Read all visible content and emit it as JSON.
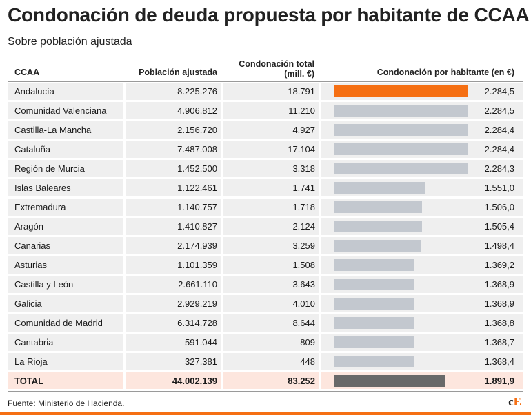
{
  "title": "Condonación de deuda propuesta por habitante de CCAA",
  "subtitle": "Sobre población ajustada",
  "headers": {
    "ccaa": "CCAA",
    "poblacion": "Población ajustada",
    "condonacion_total_1": "Condonación total",
    "condonacion_total_2": "(mill. €)",
    "por_habitante": "Condonación por habitante (en €)"
  },
  "chart_data": {
    "type": "table",
    "title": "Condonación de deuda propuesta por habitante de CCAA",
    "subtitle": "Sobre población ajustada",
    "columns": [
      "CCAA",
      "Población ajustada",
      "Condonación total (mill. €)",
      "Condonación por habitante (en €)"
    ],
    "bar_max": 2284.5,
    "colors": {
      "highlight": "#f56f13",
      "bar": "#c3c8cf",
      "total_bar": "#696969",
      "total_row": "#fde6de",
      "row": "#efefef"
    },
    "rows": [
      {
        "ccaa": "Andalucía",
        "poblacion": "8.225.276",
        "total": "18.791",
        "per_capita": "2.284,5",
        "value": 2284.5
      },
      {
        "ccaa": "Comunidad Valenciana",
        "poblacion": "4.906.812",
        "total": "11.210",
        "per_capita": "2.284,5",
        "value": 2284.5
      },
      {
        "ccaa": "Castilla-La Mancha",
        "poblacion": "2.156.720",
        "total": "4.927",
        "per_capita": "2.284,4",
        "value": 2284.4
      },
      {
        "ccaa": "Cataluña",
        "poblacion": "7.487.008",
        "total": "17.104",
        "per_capita": "2.284,4",
        "value": 2284.4
      },
      {
        "ccaa": "Región de Murcia",
        "poblacion": "1.452.500",
        "total": "3.318",
        "per_capita": "2.284,3",
        "value": 2284.3
      },
      {
        "ccaa": "Islas Baleares",
        "poblacion": "1.122.461",
        "total": "1.741",
        "per_capita": "1.551,0",
        "value": 1551.0
      },
      {
        "ccaa": "Extremadura",
        "poblacion": "1.140.757",
        "total": "1.718",
        "per_capita": "1.506,0",
        "value": 1506.0
      },
      {
        "ccaa": "Aragón",
        "poblacion": "1.410.827",
        "total": "2.124",
        "per_capita": "1.505,4",
        "value": 1505.4
      },
      {
        "ccaa": "Canarias",
        "poblacion": "2.174.939",
        "total": "3.259",
        "per_capita": "1.498,4",
        "value": 1498.4
      },
      {
        "ccaa": "Asturias",
        "poblacion": "1.101.359",
        "total": "1.508",
        "per_capita": "1.369,2",
        "value": 1369.2
      },
      {
        "ccaa": "Castilla y León",
        "poblacion": "2.661.110",
        "total": "3.643",
        "per_capita": "1.368,9",
        "value": 1368.9
      },
      {
        "ccaa": "Galicia",
        "poblacion": "2.929.219",
        "total": "4.010",
        "per_capita": "1.368,9",
        "value": 1368.9
      },
      {
        "ccaa": "Comunidad de Madrid",
        "poblacion": "6.314.728",
        "total": "8.644",
        "per_capita": "1.368,8",
        "value": 1368.8
      },
      {
        "ccaa": "Cantabria",
        "poblacion": "591.044",
        "total": "809",
        "per_capita": "1.368,7",
        "value": 1368.7
      },
      {
        "ccaa": "La Rioja",
        "poblacion": "327.381",
        "total": "448",
        "per_capita": "1.368,4",
        "value": 1368.4
      }
    ],
    "total": {
      "ccaa": "TOTAL",
      "poblacion": "44.002.139",
      "total": "83.252",
      "per_capita": "1.891,9",
      "value": 1891.9
    }
  },
  "source": "Fuente: Ministerio de Hacienda.",
  "logo": {
    "c": "c",
    "e": "E"
  }
}
